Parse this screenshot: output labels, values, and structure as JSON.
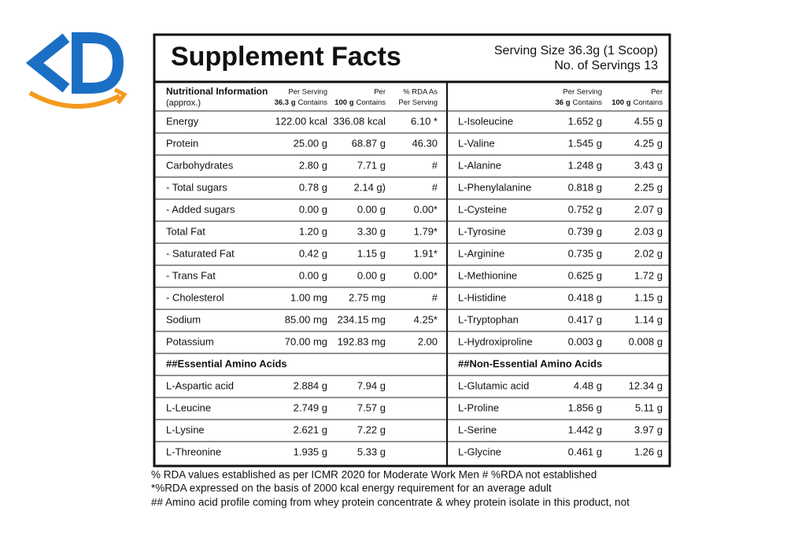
{
  "header": {
    "title": "Supplement Facts",
    "serving_size": "Serving Size  36.3g (1 Scoop)",
    "servings": "No. of Servings 13"
  },
  "table": {
    "left_header": {
      "name": "Nutritional Information",
      "name_note": "(approx.)",
      "col1_top": "Per Serving",
      "col1_bold": "36.3 g",
      "col1_rest": "Contains",
      "col2_top": "Per",
      "col2_bold": "100 g",
      "col2_rest": "Contains",
      "col3_top": "% RDA As",
      "col3_rest": "Per Serving"
    },
    "right_header": {
      "col1_top": "Per Serving",
      "col1_bold": "36 g",
      "col1_rest": "Contains",
      "col2_top": "Per",
      "col2_bold": "100 g",
      "col2_rest": "Contains"
    },
    "left_rows": [
      [
        "Energy",
        "122.00 kcal",
        "336.08 kcal",
        "6.10 *"
      ],
      [
        "Protein",
        "25.00 g",
        "68.87 g",
        "46.30"
      ],
      [
        "Carbohydrates",
        "2.80 g",
        "7.71 g",
        "#"
      ],
      [
        " - Total sugars",
        "0.78 g",
        "2.14 g)",
        "#"
      ],
      [
        " - Added sugars",
        "0.00 g",
        "0.00 g",
        "0.00*"
      ],
      [
        "Total Fat",
        "1.20 g",
        "3.30 g",
        "1.79*"
      ],
      [
        " - Saturated Fat",
        "0.42 g",
        "1.15 g",
        "1.91*"
      ],
      [
        " - Trans Fat",
        "0.00 g",
        "0.00 g",
        "0.00*"
      ],
      [
        " - Cholesterol",
        "1.00 mg",
        "2.75 mg",
        "#"
      ],
      [
        "Sodium",
        "85.00 mg",
        "234.15 mg",
        "4.25*"
      ],
      [
        "Potassium",
        "70.00 mg",
        "192.83 mg",
        "2.00"
      ]
    ],
    "left_section": "##Essential Amino Acids",
    "left_section_rows": [
      [
        "L-Aspartic acid",
        "2.884 g",
        "7.94 g"
      ],
      [
        "L-Leucine",
        "2.749 g",
        "7.57 g"
      ],
      [
        "L-Lysine",
        "2.621 g",
        "7.22 g"
      ],
      [
        "L-Threonine",
        "1.935 g",
        "5.33 g"
      ]
    ],
    "right_rows": [
      [
        "L-Isoleucine",
        "1.652 g",
        "4.55 g"
      ],
      [
        "L-Valine",
        "1.545 g",
        "4.25 g"
      ],
      [
        "L-Alanine",
        "1.248 g",
        "3.43 g"
      ],
      [
        "L-Phenylalanine",
        "0.818 g",
        "2.25 g"
      ],
      [
        "L-Cysteine",
        "0.752 g",
        "2.07 g"
      ],
      [
        "L-Tyrosine",
        "0.739 g",
        "2.03 g"
      ],
      [
        "L-Arginine",
        "0.735 g",
        "2.02 g"
      ],
      [
        "L-Methionine",
        "0.625 g",
        "1.72 g"
      ],
      [
        "L-Histidine",
        "0.418 g",
        "1.15 g"
      ],
      [
        "L-Tryptophan",
        "0.417 g",
        "1.14 g"
      ],
      [
        "L-Hydroxiproline",
        "0.003 g",
        "0.008 g"
      ]
    ],
    "right_section": "##Non-Essential Amino Acids",
    "right_section_rows": [
      [
        "L-Glutamic acid",
        "4.48 g",
        "12.34 g"
      ],
      [
        "L-Proline",
        "1.856 g",
        "5.11 g"
      ],
      [
        "L-Serine",
        "1.442 g",
        "3.97 g"
      ],
      [
        "L-Glycine",
        "0.461 g",
        "1.26 g"
      ]
    ]
  },
  "footnotes": [
    "% RDA values established as per ICMR 2020 for Moderate Work Men   # %RDA not established",
    "*%RDA expressed on the basis of 2000 kcal energy requirement for an average adult",
    "## Amino acid profile coming from whey protein concentrate & whey protein isolate in this product, not"
  ]
}
